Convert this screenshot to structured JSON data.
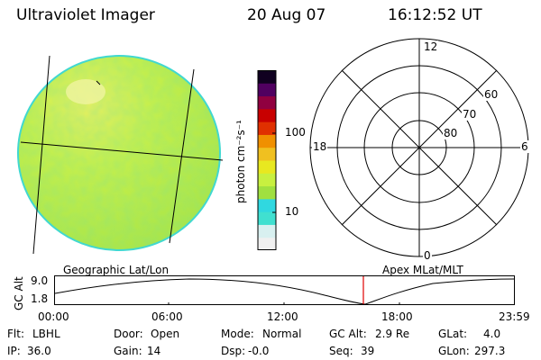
{
  "header": {
    "instrument": "Ultraviolet Imager",
    "date": "20 Aug 07",
    "time": "16:12:52 UT"
  },
  "colorbar": {
    "unit_label": "photon cm⁻²s⁻¹",
    "ticks": [
      "100",
      "10"
    ],
    "colors": [
      "#f0f0f0",
      "#d8f0f0",
      "#40e0d0",
      "#30d8e0",
      "#a0e040",
      "#c8f040",
      "#e8e820",
      "#f0c020",
      "#f09000",
      "#e03000",
      "#c80000",
      "#900040",
      "#500060",
      "#100020"
    ]
  },
  "map": {
    "label": "Geographic Lat/Lon",
    "disk_color": "#b8ec3c",
    "highlight_color": "#e8f060"
  },
  "polar": {
    "label": "Apex MLat/MLT",
    "mlt": {
      "top": "12",
      "bottom": "0",
      "left": "18",
      "right": "6"
    },
    "lat_labels": [
      "60",
      "70",
      "80"
    ]
  },
  "altitude_plot": {
    "ylabel": "GC Alt",
    "yticks": [
      "9.0",
      "1.8"
    ],
    "xticks": [
      "00:00",
      "06:00",
      "12:00",
      "18:00",
      "23:59"
    ],
    "marker_color": "#e00000"
  },
  "status": {
    "flt_label": "Flt:",
    "flt_value": "LBHL",
    "door_label": "Door:",
    "door_value": "Open",
    "mode_label": "Mode:",
    "mode_value": "Normal",
    "gcalt_label": "GC Alt:",
    "gcalt_value": "2.9 Re",
    "glat_label": "GLat:",
    "glat_value": "4.0",
    "ip_label": "IP:",
    "ip_value": "36.0",
    "gain_label": "Gain:",
    "gain_value": "14",
    "dsp_label": "Dsp:",
    "dsp_value": "-0.0",
    "seq_label": "Seq:",
    "seq_value": "39",
    "glon_label": "GLon:",
    "glon_value": "297.3"
  }
}
